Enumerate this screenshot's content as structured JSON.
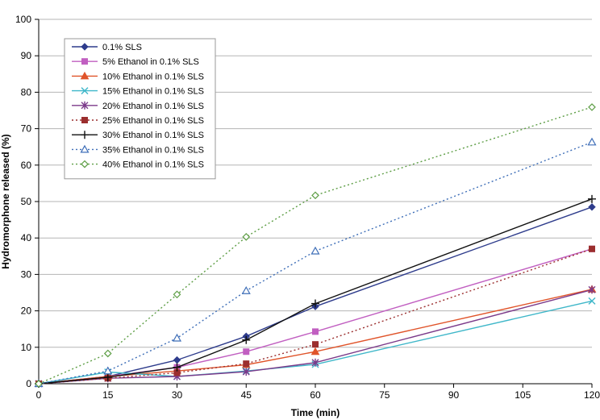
{
  "chart_data": {
    "type": "line",
    "title": "",
    "xlabel": "Time (min)",
    "ylabel": "Hydromorphone released (%)",
    "x": [
      0,
      15,
      30,
      45,
      60,
      120
    ],
    "xticks": [
      0,
      15,
      30,
      45,
      60,
      75,
      90,
      105,
      120
    ],
    "yticks": [
      0,
      10,
      20,
      30,
      40,
      50,
      60,
      70,
      80,
      90,
      100
    ],
    "xlim": [
      0,
      120
    ],
    "ylim": [
      0,
      100
    ],
    "legend_position": "top-left",
    "series": [
      {
        "name": "0.1% SLS",
        "values": [
          0,
          2.0,
          6.5,
          13.0,
          21.2,
          48.5
        ],
        "color": "#2E3C8C",
        "marker": "diamond",
        "dashed": false
      },
      {
        "name": "5% Ethanol in 0.1% SLS",
        "values": [
          0,
          2.0,
          4.5,
          8.8,
          14.3,
          37.0
        ],
        "color": "#C15FC1",
        "marker": "square",
        "dashed": false
      },
      {
        "name": "10% Ethanol in 0.1% SLS",
        "values": [
          0,
          2.0,
          3.5,
          5.2,
          8.8,
          25.9
        ],
        "color": "#E0542A",
        "marker": "triangle",
        "dashed": false
      },
      {
        "name": "15% Ethanol in 0.1% SLS",
        "values": [
          0,
          3.2,
          2.0,
          3.5,
          5.3,
          22.7
        ],
        "color": "#3FB7C9",
        "marker": "x",
        "dashed": false
      },
      {
        "name": "20% Ethanol in 0.1% SLS",
        "values": [
          0,
          1.5,
          2.0,
          3.3,
          5.8,
          25.8
        ],
        "color": "#7B3A8A",
        "marker": "star",
        "dashed": false
      },
      {
        "name": "25% Ethanol in 0.1% SLS",
        "values": [
          0,
          1.5,
          3.0,
          5.5,
          10.8,
          37.0
        ],
        "color": "#9B2E2E",
        "marker": "square",
        "dashed": true
      },
      {
        "name": "30% Ethanol in 0.1% SLS",
        "values": [
          0,
          1.8,
          4.5,
          12.0,
          22.0,
          50.7
        ],
        "color": "#111111",
        "marker": "plus",
        "dashed": false
      },
      {
        "name": "35% Ethanol in 0.1% SLS",
        "values": [
          0,
          3.5,
          12.5,
          25.5,
          36.4,
          66.3
        ],
        "color": "#3F6FB8",
        "marker": "open-triangle",
        "dashed": true
      },
      {
        "name": "40% Ethanol in 0.1% SLS",
        "values": [
          0,
          8.3,
          24.5,
          40.3,
          51.7,
          75.9
        ],
        "color": "#5E9E46",
        "marker": "open-diamond",
        "dashed": true
      }
    ]
  }
}
